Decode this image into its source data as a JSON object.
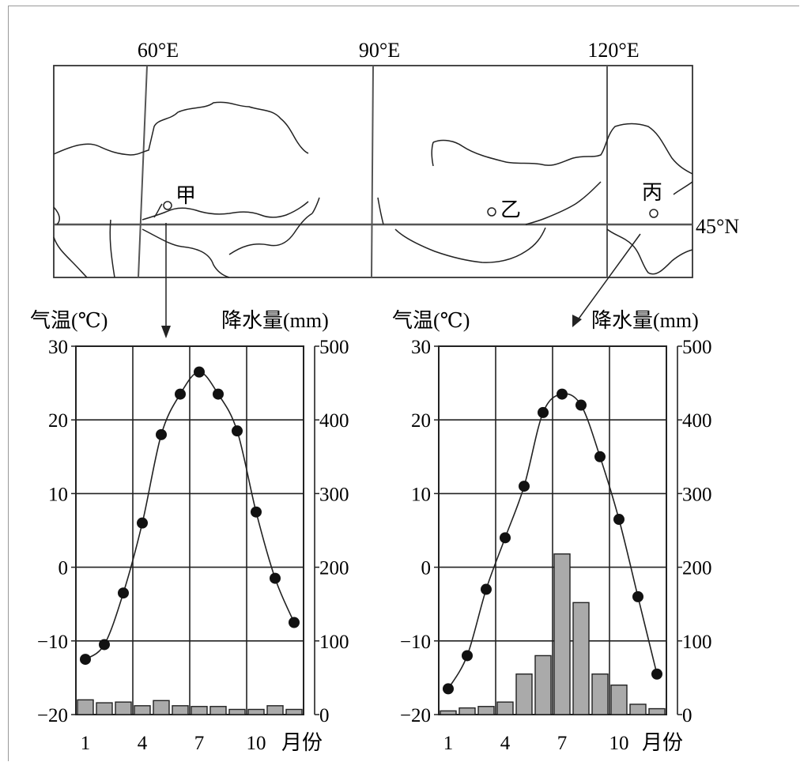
{
  "map": {
    "longitudes": [
      "60°E",
      "90°E",
      "120°E"
    ],
    "latitude": "45°N",
    "places": [
      "甲",
      "乙",
      "丙"
    ]
  },
  "chart_data": [
    {
      "type": "bar+line",
      "station": "甲",
      "ylabel_left": "气温(℃)",
      "ylabel_right": "降水量(mm)",
      "xlabel": "月份",
      "x_ticks": [
        "1",
        "4",
        "7",
        "10"
      ],
      "y_left_ticks": [
        "30",
        "20",
        "10",
        "0",
        "−10",
        "−20"
      ],
      "y_right_ticks": [
        "500",
        "400",
        "300",
        "200",
        "100",
        "0"
      ],
      "ylim_left": [
        -20,
        30
      ],
      "ylim_right": [
        0,
        500
      ],
      "months": [
        1,
        2,
        3,
        4,
        5,
        6,
        7,
        8,
        9,
        10,
        11,
        12
      ],
      "temperature": [
        -12.5,
        -10.5,
        -3.5,
        6,
        18,
        23.5,
        26.5,
        23.5,
        18.5,
        7.5,
        -1.5,
        -7.5
      ],
      "precipitation": [
        20,
        16,
        17,
        12,
        19,
        12,
        11,
        11,
        7,
        7,
        12,
        7
      ],
      "grid": true
    },
    {
      "type": "bar+line",
      "station": "丙",
      "ylabel_left": "气温(℃)",
      "ylabel_right": "降水量(mm)",
      "xlabel": "月份",
      "x_ticks": [
        "1",
        "4",
        "7",
        "10"
      ],
      "y_left_ticks": [
        "30",
        "20",
        "10",
        "0",
        "−10",
        "−20"
      ],
      "y_right_ticks": [
        "500",
        "400",
        "300",
        "200",
        "100",
        "0"
      ],
      "ylim_left": [
        -20,
        30
      ],
      "ylim_right": [
        0,
        500
      ],
      "months": [
        1,
        2,
        3,
        4,
        5,
        6,
        7,
        8,
        9,
        10,
        11,
        12
      ],
      "temperature": [
        -16.5,
        -12,
        -3,
        4,
        11,
        21,
        23.5,
        22,
        15,
        6.5,
        -4,
        -14.5
      ],
      "precipitation": [
        5,
        9,
        11,
        17,
        55,
        80,
        218,
        152,
        55,
        40,
        14,
        8
      ],
      "grid": true
    }
  ]
}
